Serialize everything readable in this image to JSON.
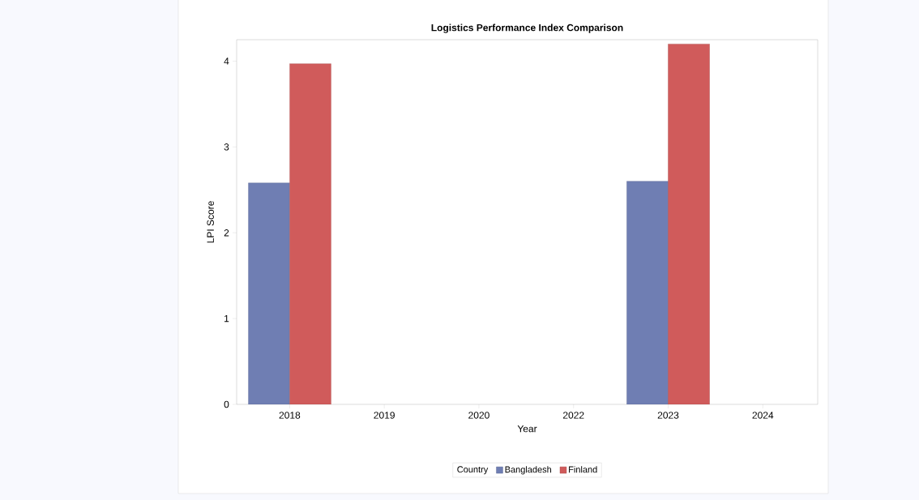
{
  "chart_data": {
    "type": "bar",
    "title": "Logistics Performance Index Comparison",
    "xlabel": "Year",
    "ylabel": "LPI Score",
    "legend_title": "Country",
    "categories": [
      "2018",
      "2019",
      "2020",
      "2022",
      "2023",
      "2024"
    ],
    "series": [
      {
        "name": "Bangladesh",
        "color": "#6f7eb3",
        "values": [
          2.58,
          null,
          null,
          null,
          2.6,
          null
        ]
      },
      {
        "name": "Finland",
        "color": "#d05b5b",
        "values": [
          3.97,
          null,
          null,
          null,
          4.2,
          null
        ]
      }
    ],
    "ylim": [
      0,
      4.25
    ],
    "yticks": [
      0,
      1,
      2,
      3,
      4
    ],
    "grid": false,
    "legend": "bottom"
  }
}
